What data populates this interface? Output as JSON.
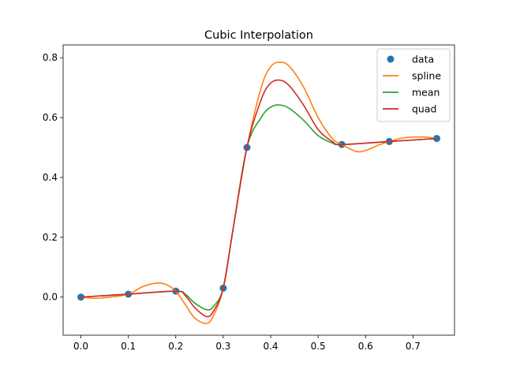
{
  "chart_data": {
    "type": "line",
    "title": "Cubic Interpolation",
    "xlabel": "",
    "ylabel": "",
    "xlim": [
      -0.0375,
      0.7875
    ],
    "ylim": [
      -0.1272,
      0.8426
    ],
    "xticks": [
      0.0,
      0.1,
      0.2,
      0.3,
      0.4,
      0.5,
      0.6,
      0.7
    ],
    "xtick_labels": [
      "0.0",
      "0.1",
      "0.2",
      "0.3",
      "0.4",
      "0.5",
      "0.6",
      "0.7"
    ],
    "yticks": [
      0.0,
      0.2,
      0.4,
      0.6,
      0.8
    ],
    "ytick_labels": [
      "0.0",
      "0.2",
      "0.4",
      "0.6",
      "0.8"
    ],
    "grid": false,
    "legend_position": "upper right",
    "series": [
      {
        "name": "data",
        "kind": "markers",
        "color": "#1f77b4",
        "x": [
          0.0,
          0.1,
          0.2,
          0.3,
          0.35,
          0.55,
          0.65,
          0.75
        ],
        "y": [
          0.0,
          0.01,
          0.02,
          0.03,
          0.5,
          0.51,
          0.52,
          0.53
        ]
      },
      {
        "name": "spline",
        "kind": "line",
        "color": "#ff7f0e",
        "x": [
          0.0,
          0.03,
          0.06,
          0.1,
          0.13,
          0.16,
          0.18,
          0.2,
          0.22,
          0.24,
          0.265,
          0.28,
          0.3,
          0.32,
          0.35,
          0.38,
          0.4,
          0.42,
          0.44,
          0.47,
          0.5,
          0.53,
          0.55,
          0.58,
          0.6,
          0.63,
          0.65,
          0.68,
          0.72,
          0.75
        ],
        "y": [
          0.0,
          -0.004,
          0.0,
          0.01,
          0.035,
          0.047,
          0.042,
          0.02,
          -0.025,
          -0.07,
          -0.088,
          -0.06,
          0.03,
          0.22,
          0.5,
          0.7,
          0.77,
          0.785,
          0.77,
          0.7,
          0.6,
          0.53,
          0.51,
          0.487,
          0.49,
          0.51,
          0.52,
          0.532,
          0.535,
          0.53
        ]
      },
      {
        "name": "mean",
        "kind": "line",
        "color": "#2ca02c",
        "x": [
          0.0,
          0.1,
          0.2,
          0.22,
          0.24,
          0.265,
          0.28,
          0.3,
          0.32,
          0.35,
          0.38,
          0.4,
          0.42,
          0.44,
          0.47,
          0.5,
          0.53,
          0.55,
          0.65,
          0.75
        ],
        "y": [
          0.0,
          0.01,
          0.02,
          0.01,
          -0.02,
          -0.042,
          -0.03,
          0.03,
          0.22,
          0.5,
          0.6,
          0.635,
          0.642,
          0.63,
          0.59,
          0.54,
          0.515,
          0.51,
          0.52,
          0.53
        ]
      },
      {
        "name": "quad",
        "kind": "line",
        "color": "#d62728",
        "x": [
          0.0,
          0.1,
          0.2,
          0.22,
          0.24,
          0.265,
          0.28,
          0.3,
          0.32,
          0.35,
          0.38,
          0.4,
          0.42,
          0.44,
          0.47,
          0.5,
          0.53,
          0.55,
          0.65,
          0.75
        ],
        "y": [
          0.0,
          0.01,
          0.02,
          0.005,
          -0.035,
          -0.065,
          -0.045,
          0.03,
          0.22,
          0.5,
          0.66,
          0.715,
          0.725,
          0.705,
          0.64,
          0.56,
          0.52,
          0.51,
          0.52,
          0.53
        ]
      }
    ]
  }
}
